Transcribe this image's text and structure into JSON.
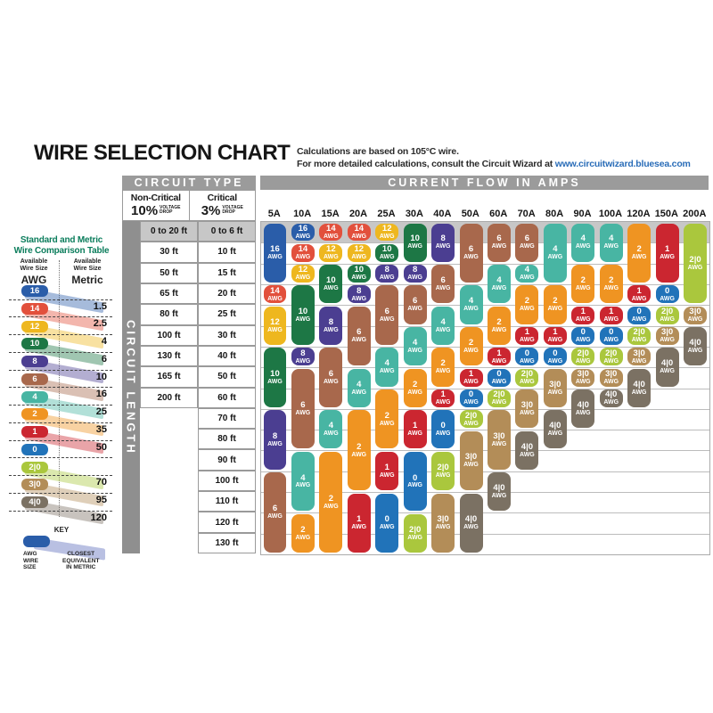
{
  "title": "WIRE SELECTION CHART",
  "note": {
    "line1": "Calculations are based on 105°C wire.",
    "line2": "For more detailed calculations, consult the Circuit Wizard at",
    "url": "www.circuitwizard.bluesea.com"
  },
  "sidebar": {
    "title1": "Standard and Metric",
    "title2": "Wire Comparison Table",
    "left_header": {
      "l1": "Available",
      "l2": "Wire Size",
      "unit": "AWG"
    },
    "right_header": {
      "l1": "Available",
      "l2": "Wire Size",
      "unit": "Metric"
    },
    "rows": [
      {
        "awg": "16",
        "metric": "1.5"
      },
      {
        "awg": "14",
        "metric": "2.5"
      },
      {
        "awg": "12",
        "metric": "4"
      },
      {
        "awg": "10",
        "metric": "6"
      },
      {
        "awg": "8",
        "metric": "10"
      },
      {
        "awg": "6",
        "metric": "16"
      },
      {
        "awg": "4",
        "metric": "25"
      },
      {
        "awg": "2",
        "metric": "35"
      },
      {
        "awg": "1",
        "metric": "50"
      },
      {
        "awg": "0",
        "metric": ""
      },
      {
        "awg": "2|0",
        "metric": "70"
      },
      {
        "awg": "3|0",
        "metric": "95"
      },
      {
        "awg": "4|0",
        "metric": "120"
      }
    ],
    "key": {
      "title": "KEY",
      "pill_label_lines": [
        "AWG",
        "WIRE",
        "SIZE"
      ],
      "ribbon_label_lines": [
        "CLOSEST",
        "EQUIVALENT",
        "IN METRIC"
      ]
    }
  },
  "chart": {
    "circuit_type": "CIRCUIT TYPE",
    "current_flow": "CURRENT FLOW IN AMPS",
    "circuit_length": "CIRCUIT LENGTH",
    "non_critical": {
      "name": "Non-Critical",
      "pct": "10%",
      "drop1": "VOLTAGE",
      "drop2": "DROP"
    },
    "critical": {
      "name": "Critical",
      "pct": "3%",
      "drop1": "VOLTAGE",
      "drop2": "DROP"
    }
  },
  "gauge_colors": {
    "16": "#2a5da9",
    "14": "#e2503c",
    "12": "#eeb71f",
    "10": "#1d7745",
    "8": "#4b3e91",
    "6": "#a8684c",
    "4": "#48b5a3",
    "2": "#ef9422",
    "1": "#cb2630",
    "0": "#2173b9",
    "2|0": "#aac73d",
    "3|0": "#b38d58",
    "4|0": "#7b7163"
  },
  "chart_data": {
    "type": "table",
    "title": "WIRE SELECTION CHART",
    "columns_label": "CURRENT FLOW IN AMPS",
    "rows_label": "CIRCUIT LENGTH",
    "pill_unit": "AWG",
    "amps": [
      "5A",
      "10A",
      "15A",
      "20A",
      "25A",
      "30A",
      "40A",
      "50A",
      "60A",
      "70A",
      "80A",
      "90A",
      "100A",
      "120A",
      "150A",
      "200A"
    ],
    "lengths_non_critical_10pct_drop": [
      "0 to 20 ft",
      "30 ft",
      "50 ft",
      "65 ft",
      "80 ft",
      "100 ft",
      "130 ft",
      "165 ft",
      "200 ft",
      "",
      "",
      "",
      "",
      "",
      "",
      ""
    ],
    "lengths_critical_3pct_drop": [
      "0 to 6 ft",
      "10 ft",
      "15 ft",
      "20 ft",
      "25 ft",
      "30 ft",
      "40 ft",
      "50 ft",
      "60 ft",
      "70 ft",
      "80 ft",
      "90 ft",
      "100 ft",
      "110 ft",
      "120 ft",
      "130 ft"
    ],
    "wire_gauge_spans": [
      {
        "amp": "5A",
        "pills": [
          [
            "16",
            0,
            2
          ],
          [
            "14",
            3,
            3
          ],
          [
            "12",
            4,
            5
          ],
          [
            "10",
            6,
            8
          ],
          [
            "8",
            9,
            11
          ],
          [
            "6",
            12,
            15
          ]
        ]
      },
      {
        "amp": "10A",
        "pills": [
          [
            "16",
            0,
            0
          ],
          [
            "14",
            1,
            1
          ],
          [
            "12",
            2,
            2
          ],
          [
            "10",
            3,
            5
          ],
          [
            "8",
            6,
            6
          ],
          [
            "6",
            7,
            10
          ],
          [
            "4",
            11,
            13
          ],
          [
            "2",
            14,
            15
          ]
        ]
      },
      {
        "amp": "15A",
        "pills": [
          [
            "14",
            0,
            0
          ],
          [
            "12",
            1,
            1
          ],
          [
            "10",
            2,
            3
          ],
          [
            "8",
            4,
            5
          ],
          [
            "6",
            6,
            8
          ],
          [
            "4",
            9,
            10
          ],
          [
            "2",
            11,
            15
          ]
        ]
      },
      {
        "amp": "20A",
        "pills": [
          [
            "14",
            0,
            0
          ],
          [
            "12",
            1,
            1
          ],
          [
            "10",
            2,
            2
          ],
          [
            "8",
            3,
            3
          ],
          [
            "6",
            4,
            6
          ],
          [
            "4",
            7,
            8
          ],
          [
            "2",
            9,
            12
          ],
          [
            "1",
            13,
            15
          ]
        ]
      },
      {
        "amp": "25A",
        "pills": [
          [
            "12",
            0,
            0
          ],
          [
            "10",
            1,
            1
          ],
          [
            "8",
            2,
            2
          ],
          [
            "6",
            3,
            5
          ],
          [
            "4",
            6,
            7
          ],
          [
            "2",
            8,
            10
          ],
          [
            "1",
            11,
            12
          ],
          [
            "0",
            13,
            15
          ]
        ]
      },
      {
        "amp": "30A",
        "pills": [
          [
            "10",
            0,
            1
          ],
          [
            "8",
            2,
            2
          ],
          [
            "6",
            3,
            4
          ],
          [
            "4",
            5,
            6
          ],
          [
            "2",
            7,
            8
          ],
          [
            "1",
            9,
            10
          ],
          [
            "0",
            11,
            13
          ],
          [
            "2|0",
            14,
            15
          ]
        ]
      },
      {
        "amp": "40A",
        "pills": [
          [
            "8",
            0,
            1
          ],
          [
            "6",
            2,
            3
          ],
          [
            "4",
            4,
            5
          ],
          [
            "2",
            6,
            7
          ],
          [
            "1",
            8,
            8
          ],
          [
            "0",
            9,
            10
          ],
          [
            "2|0",
            11,
            12
          ],
          [
            "3|0",
            13,
            15
          ]
        ]
      },
      {
        "amp": "50A",
        "pills": [
          [
            "6",
            0,
            2
          ],
          [
            "4",
            3,
            4
          ],
          [
            "2",
            5,
            6
          ],
          [
            "1",
            7,
            7
          ],
          [
            "0",
            8,
            8
          ],
          [
            "2|0",
            9,
            9
          ],
          [
            "3|0",
            10,
            12
          ],
          [
            "4|0",
            13,
            15
          ]
        ]
      },
      {
        "amp": "60A",
        "pills": [
          [
            "6",
            0,
            1
          ],
          [
            "4",
            2,
            3
          ],
          [
            "2",
            4,
            5
          ],
          [
            "1",
            6,
            6
          ],
          [
            "0",
            7,
            7
          ],
          [
            "2|0",
            8,
            8
          ],
          [
            "3|0",
            9,
            11
          ],
          [
            "4|0",
            12,
            13
          ]
        ]
      },
      {
        "amp": "70A",
        "pills": [
          [
            "6",
            0,
            1
          ],
          [
            "4",
            2,
            2
          ],
          [
            "2",
            3,
            4
          ],
          [
            "1",
            5,
            5
          ],
          [
            "0",
            6,
            6
          ],
          [
            "2|0",
            7,
            7
          ],
          [
            "3|0",
            8,
            9
          ],
          [
            "4|0",
            10,
            11
          ]
        ]
      },
      {
        "amp": "80A",
        "pills": [
          [
            "4",
            0,
            2
          ],
          [
            "2",
            3,
            4
          ],
          [
            "1",
            5,
            5
          ],
          [
            "0",
            6,
            6
          ],
          [
            "3|0",
            7,
            8
          ],
          [
            "4|0",
            9,
            10
          ]
        ]
      },
      {
        "amp": "90A",
        "pills": [
          [
            "4",
            0,
            1
          ],
          [
            "2",
            2,
            3
          ],
          [
            "1",
            4,
            4
          ],
          [
            "0",
            5,
            5
          ],
          [
            "2|0",
            6,
            6
          ],
          [
            "3|0",
            7,
            7
          ],
          [
            "4|0",
            8,
            9
          ]
        ]
      },
      {
        "amp": "100A",
        "pills": [
          [
            "4",
            0,
            1
          ],
          [
            "2",
            2,
            3
          ],
          [
            "1",
            4,
            4
          ],
          [
            "0",
            5,
            5
          ],
          [
            "2|0",
            6,
            6
          ],
          [
            "3|0",
            7,
            7
          ],
          [
            "4|0",
            8,
            8
          ]
        ]
      },
      {
        "amp": "120A",
        "pills": [
          [
            "2",
            0,
            2
          ],
          [
            "1",
            3,
            3
          ],
          [
            "0",
            4,
            4
          ],
          [
            "2|0",
            5,
            5
          ],
          [
            "3|0",
            6,
            6
          ],
          [
            "4|0",
            7,
            8
          ]
        ]
      },
      {
        "amp": "150A",
        "pills": [
          [
            "1",
            0,
            2
          ],
          [
            "0",
            3,
            3
          ],
          [
            "2|0",
            4,
            4
          ],
          [
            "3|0",
            5,
            5
          ],
          [
            "4|0",
            6,
            7
          ]
        ]
      },
      {
        "amp": "200A",
        "pills": [
          [
            "2|0",
            0,
            3
          ],
          [
            "3|0",
            4,
            4
          ],
          [
            "4|0",
            5,
            6
          ]
        ]
      }
    ]
  }
}
